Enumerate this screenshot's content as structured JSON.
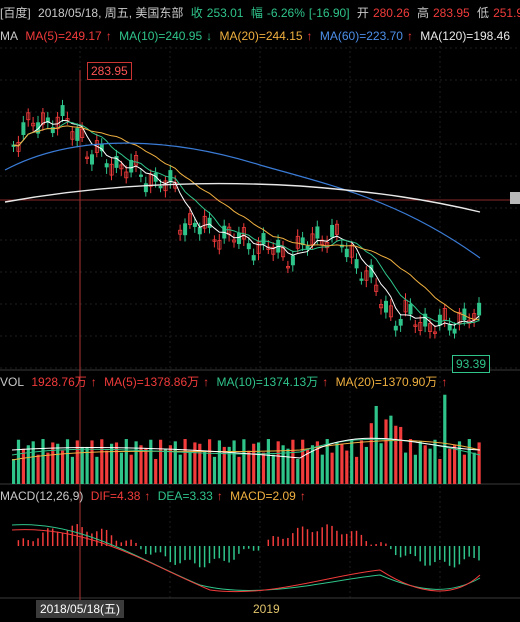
{
  "header": {
    "source": "[百度]",
    "date": "2018/05/18, 周五, 美国东部",
    "close_label": "收",
    "close": "253.01",
    "change_label": "幅",
    "change_pct": "-6.26%",
    "change_abs": "[-16.90]",
    "open_label": "开",
    "open": "280.26",
    "high_label": "高",
    "high": "283.95",
    "low_label": "低",
    "low": "251.9"
  },
  "ma": {
    "label": "MA",
    "ma5": "MA(5)=249.17",
    "ma10": "MA(10)=240.95",
    "ma20": "MA(20)=244.15",
    "ma60": "MA(60)=223.70",
    "ma120": "MA(120)=198.46"
  },
  "vol": {
    "label": "VOL",
    "value": "1928.76万",
    "ma5": "MA(5)=1378.86万",
    "ma10": "MA(10)=1374.13万",
    "ma20": "MA(20)=1370.90万"
  },
  "macd": {
    "label": "MACD(12,26,9)",
    "dif": "DIF=4.38",
    "dea": "DEA=3.33",
    "macd": "MACD=2.09"
  },
  "markers": {
    "high_price": "283.95",
    "low_price": "93.39",
    "cursor_date": "2018/05/18(五)",
    "year": "2019"
  },
  "colors": {
    "up": "#f23b3b",
    "down": "#2fc48a",
    "ma5": "#ffffff",
    "ma10": "#2fc48a",
    "ma20": "#f0b040",
    "ma60": "#3a7bd5",
    "ma120": "#e8e8e8"
  },
  "icons": {
    "up_arrow": "up-arrow-icon",
    "down_arrow": "down-arrow-icon"
  }
}
